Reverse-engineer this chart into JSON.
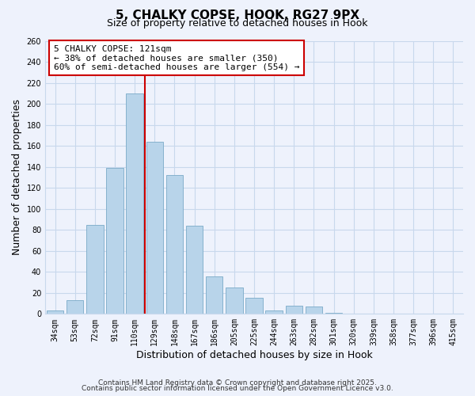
{
  "title1": "5, CHALKY COPSE, HOOK, RG27 9PX",
  "title2": "Size of property relative to detached houses in Hook",
  "xlabel": "Distribution of detached houses by size in Hook",
  "ylabel": "Number of detached properties",
  "categories": [
    "34sqm",
    "53sqm",
    "72sqm",
    "91sqm",
    "110sqm",
    "129sqm",
    "148sqm",
    "167sqm",
    "186sqm",
    "205sqm",
    "225sqm",
    "244sqm",
    "263sqm",
    "282sqm",
    "301sqm",
    "320sqm",
    "339sqm",
    "358sqm",
    "377sqm",
    "396sqm",
    "415sqm"
  ],
  "values": [
    3,
    13,
    85,
    139,
    210,
    164,
    132,
    84,
    36,
    25,
    15,
    3,
    8,
    7,
    1,
    0,
    0,
    0,
    0,
    0,
    0
  ],
  "bar_color": "#b8d4ea",
  "bar_edge_color": "#7aaac8",
  "grid_color": "#c8d8ec",
  "vline_x": 4.5,
  "vline_color": "#cc0000",
  "ann_line0": "5 CHALKY COPSE: 121sqm",
  "ann_line1": "← 38% of detached houses are smaller (350)",
  "ann_line2": "60% of semi-detached houses are larger (554) →",
  "ann_box_facecolor": "#ffffff",
  "ann_box_edgecolor": "#cc0000",
  "ylim": [
    0,
    260
  ],
  "yticks": [
    0,
    20,
    40,
    60,
    80,
    100,
    120,
    140,
    160,
    180,
    200,
    220,
    240,
    260
  ],
  "footnote1": "Contains HM Land Registry data © Crown copyright and database right 2025.",
  "footnote2": "Contains public sector information licensed under the Open Government Licence v3.0.",
  "bg_color": "#eef2fc",
  "title_fontsize": 11,
  "subtitle_fontsize": 9,
  "ylabel_fontsize": 9,
  "xlabel_fontsize": 9,
  "tick_fontsize": 7,
  "ann_fontsize": 8,
  "footnote_fontsize": 6.5
}
